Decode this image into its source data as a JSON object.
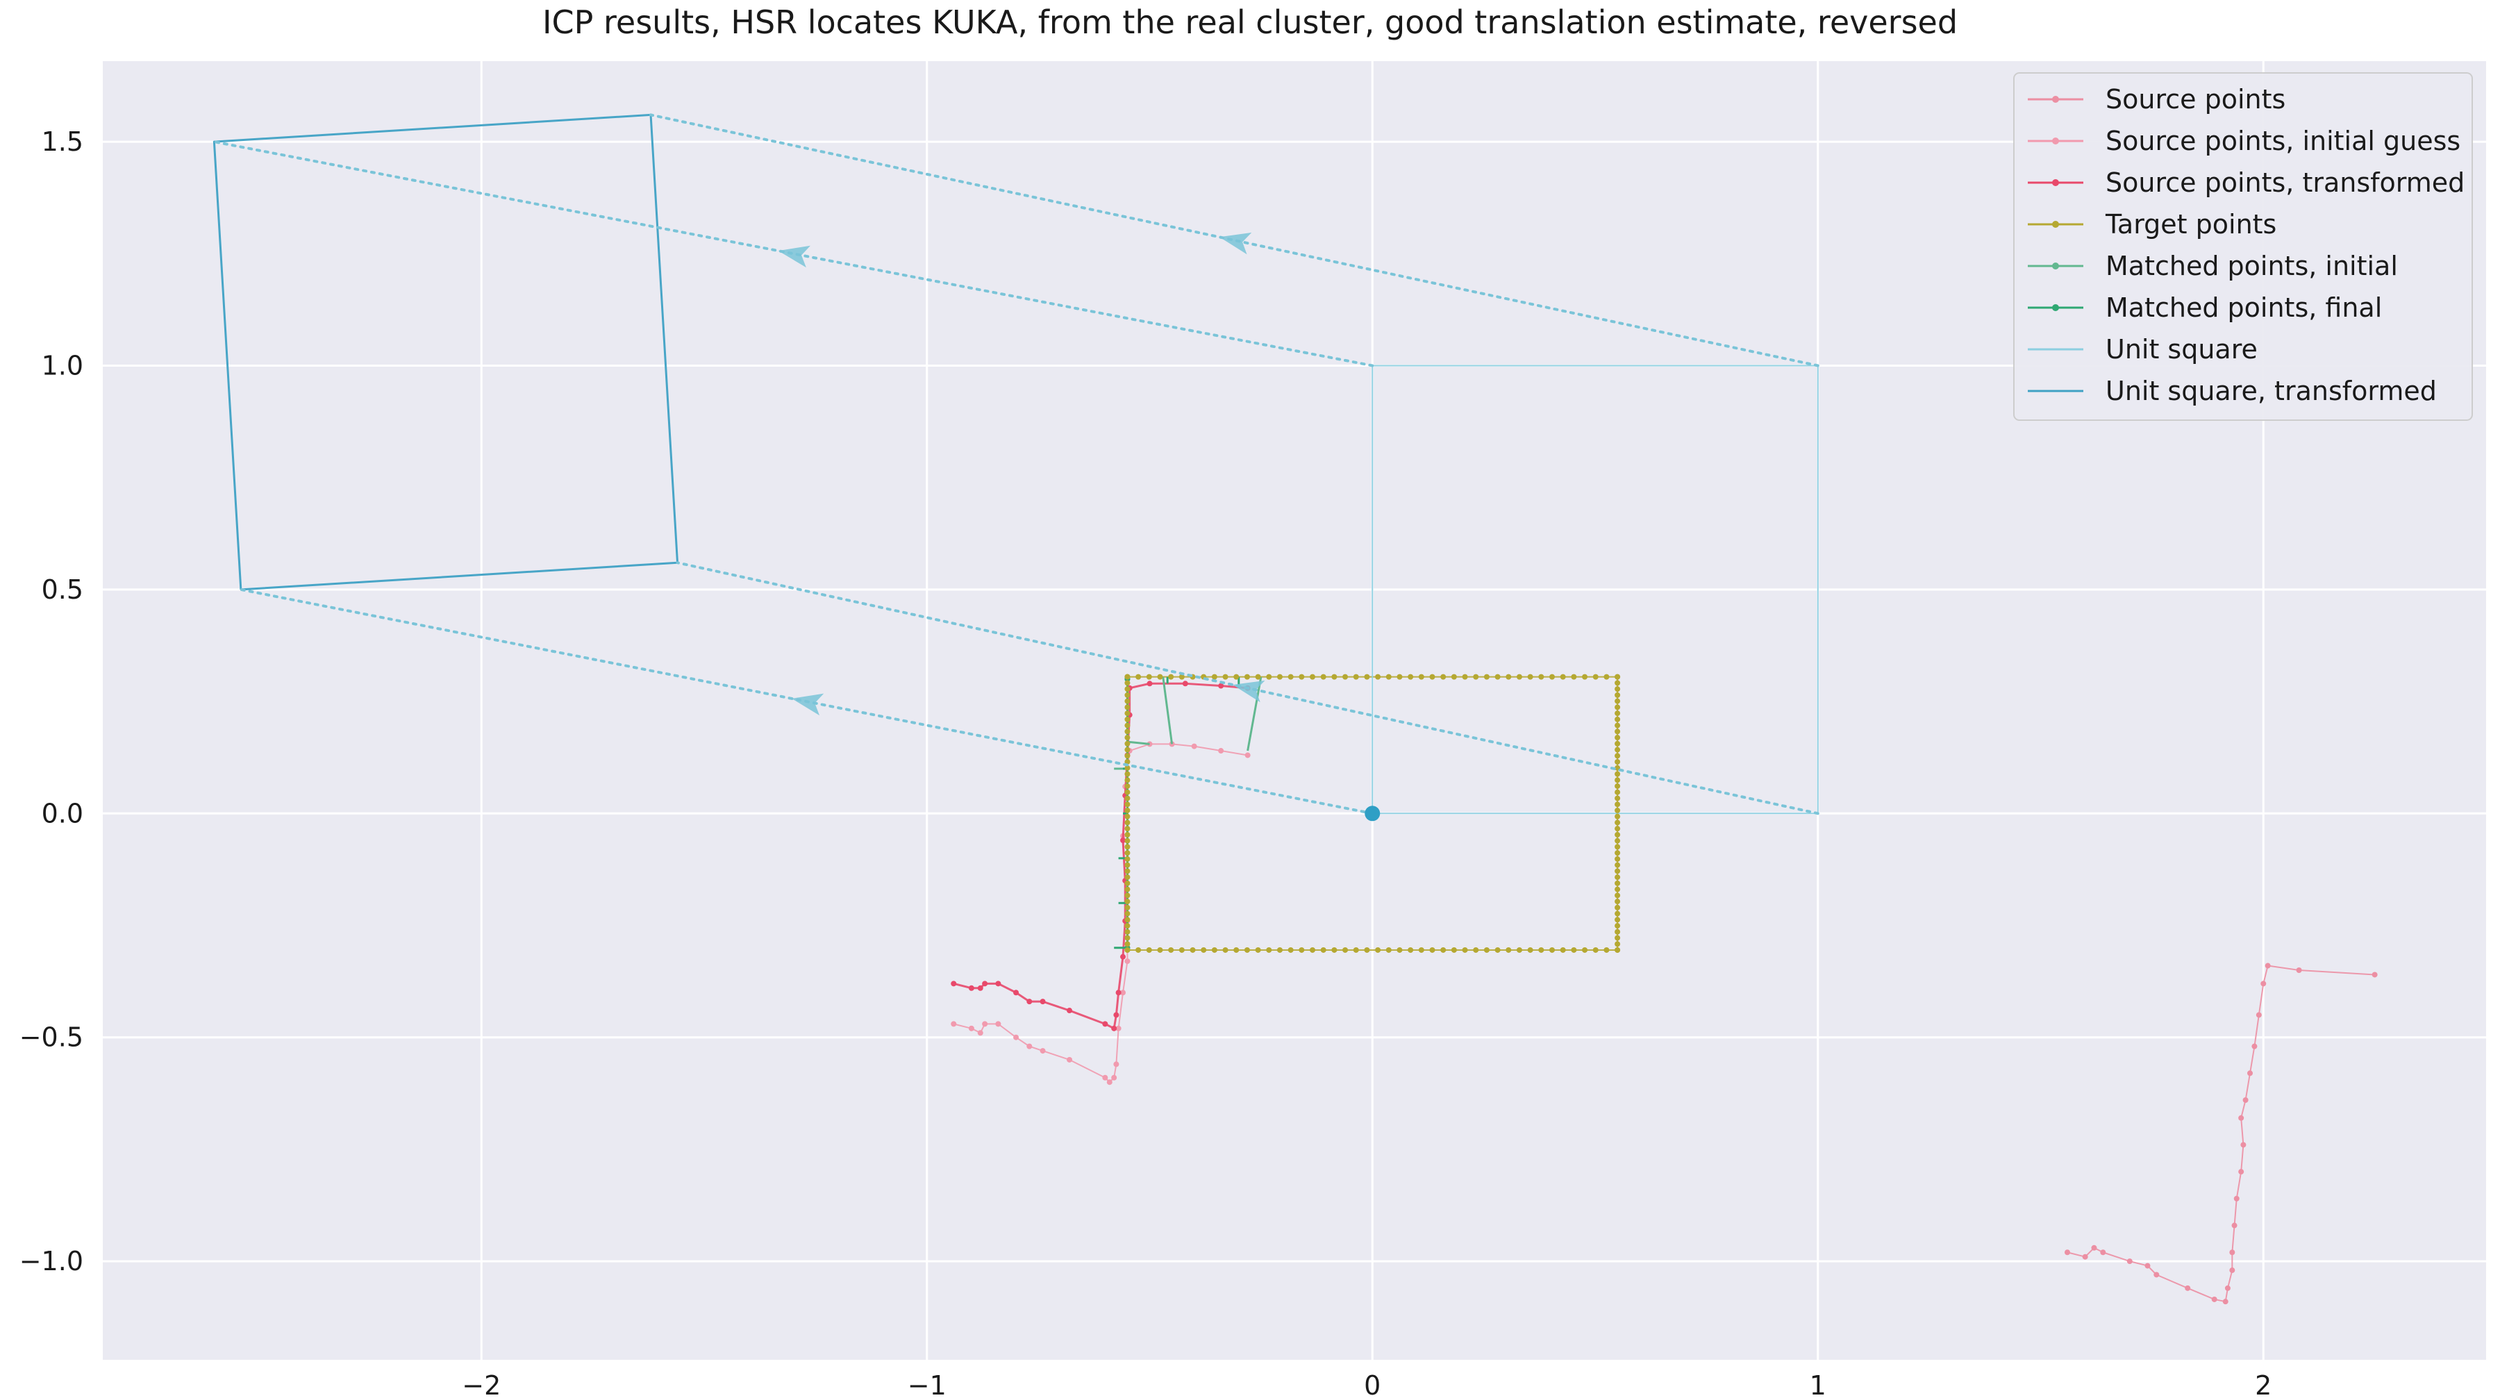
{
  "chart_data": {
    "type": "line",
    "title": "ICP results, HSR locates KUKA, from the real cluster, good translation estimate, reversed",
    "xlabel": "",
    "ylabel": "",
    "xlim": [
      -2.85,
      2.5
    ],
    "ylim": [
      -1.22,
      1.68
    ],
    "xticks": [
      -2,
      -1,
      0,
      1,
      2
    ],
    "yticks": [
      1.5,
      1.0,
      0.5,
      0.0,
      -0.5,
      -1.0
    ],
    "xtick_labels": [
      "−2",
      "−1",
      "0",
      "1",
      "2"
    ],
    "ytick_labels": [
      "1.5",
      "1.0",
      "0.5",
      "0.0",
      "−0.5",
      "−1.0"
    ],
    "grid": true,
    "legend_position": "top-right",
    "colors": {
      "background": "#eaeaf2",
      "grid": "#ffffff",
      "source": "#ec8fa3",
      "source_initial": "#f19aae",
      "source_transformed": "#e8496b",
      "target": "#b5a832",
      "matched_initial": "#62b890",
      "matched_final": "#2fa873",
      "unit_square": "#8ccfe0",
      "unit_square_transformed": "#3fa1c4",
      "arrow": "#7ac4d8"
    },
    "series": [
      {
        "name": "Source points",
        "color": "#ec8fa3",
        "points": [
          [
            2.25,
            -0.36
          ],
          [
            2.08,
            -0.35
          ],
          [
            2.01,
            -0.34
          ],
          [
            2.0,
            -0.38
          ],
          [
            1.99,
            -0.45
          ],
          [
            1.98,
            -0.52
          ],
          [
            1.97,
            -0.58
          ],
          [
            1.96,
            -0.64
          ],
          [
            1.95,
            -0.68
          ],
          [
            1.955,
            -0.74
          ],
          [
            1.95,
            -0.8
          ],
          [
            1.94,
            -0.86
          ],
          [
            1.935,
            -0.92
          ],
          [
            1.93,
            -0.98
          ],
          [
            1.93,
            -1.02
          ],
          [
            1.92,
            -1.06
          ],
          [
            1.915,
            -1.09
          ],
          [
            1.89,
            -1.085
          ],
          [
            1.83,
            -1.06
          ],
          [
            1.76,
            -1.03
          ],
          [
            1.74,
            -1.01
          ],
          [
            1.7,
            -1.0
          ],
          [
            1.64,
            -0.98
          ],
          [
            1.62,
            -0.97
          ],
          [
            1.6,
            -0.99
          ],
          [
            1.56,
            -0.98
          ]
        ]
      },
      {
        "name": "Source points, initial guess",
        "color": "#f19aae",
        "points": [
          [
            -0.94,
            -0.47
          ],
          [
            -0.9,
            -0.48
          ],
          [
            -0.88,
            -0.49
          ],
          [
            -0.87,
            -0.47
          ],
          [
            -0.84,
            -0.47
          ],
          [
            -0.8,
            -0.5
          ],
          [
            -0.77,
            -0.52
          ],
          [
            -0.74,
            -0.53
          ],
          [
            -0.68,
            -0.55
          ],
          [
            -0.6,
            -0.59
          ],
          [
            -0.59,
            -0.6
          ],
          [
            -0.58,
            -0.59
          ],
          [
            -0.575,
            -0.56
          ],
          [
            -0.57,
            -0.48
          ],
          [
            -0.56,
            -0.4
          ],
          [
            -0.55,
            -0.33
          ],
          [
            -0.55,
            -0.24
          ],
          [
            -0.555,
            -0.15
          ],
          [
            -0.56,
            -0.05
          ],
          [
            -0.555,
            0.06
          ],
          [
            -0.545,
            0.14
          ],
          [
            -0.5,
            0.155
          ],
          [
            -0.45,
            0.155
          ],
          [
            -0.4,
            0.15
          ],
          [
            -0.34,
            0.14
          ],
          [
            -0.28,
            0.13
          ]
        ]
      },
      {
        "name": "Source points, transformed",
        "color": "#e8496b",
        "points": [
          [
            -0.94,
            -0.38
          ],
          [
            -0.9,
            -0.39
          ],
          [
            -0.88,
            -0.39
          ],
          [
            -0.87,
            -0.38
          ],
          [
            -0.84,
            -0.38
          ],
          [
            -0.8,
            -0.4
          ],
          [
            -0.77,
            -0.42
          ],
          [
            -0.74,
            -0.42
          ],
          [
            -0.68,
            -0.44
          ],
          [
            -0.6,
            -0.47
          ],
          [
            -0.58,
            -0.48
          ],
          [
            -0.575,
            -0.45
          ],
          [
            -0.57,
            -0.4
          ],
          [
            -0.56,
            -0.32
          ],
          [
            -0.555,
            -0.24
          ],
          [
            -0.555,
            -0.15
          ],
          [
            -0.56,
            -0.06
          ],
          [
            -0.555,
            0.04
          ],
          [
            -0.55,
            0.13
          ],
          [
            -0.545,
            0.22
          ],
          [
            -0.545,
            0.28
          ],
          [
            -0.5,
            0.29
          ],
          [
            -0.42,
            0.29
          ],
          [
            -0.34,
            0.285
          ],
          [
            -0.28,
            0.28
          ]
        ]
      },
      {
        "name": "Target points",
        "color": "#b5a832",
        "points": [
          [
            -0.55,
            0.305
          ],
          [
            0.55,
            0.305
          ],
          [
            0.55,
            -0.305
          ],
          [
            -0.55,
            -0.305
          ],
          [
            -0.55,
            0.305
          ]
        ]
      },
      {
        "name": "Matched points, initial",
        "color": "#62b890",
        "points": [
          [
            -0.55,
            0.3
          ],
          [
            -0.55,
            -0.3
          ]
        ],
        "segments": [
          [
            [
              -0.28,
              0.14
            ],
            [
              -0.25,
              0.305
            ]
          ],
          [
            [
              -0.45,
              0.155
            ],
            [
              -0.47,
              0.305
            ]
          ],
          [
            [
              -0.5,
              0.155
            ],
            [
              -0.55,
              0.16
            ]
          ],
          [
            [
              -0.55,
              0.1
            ],
            [
              -0.58,
              0.1
            ]
          ]
        ]
      },
      {
        "name": "Matched points, final",
        "color": "#2fa873",
        "points": [
          [
            -0.55,
            0.3
          ],
          [
            -0.55,
            -0.3
          ]
        ],
        "segments": [
          [
            [
              -0.57,
              -0.1
            ],
            [
              -0.55,
              -0.1
            ]
          ],
          [
            [
              -0.56,
              0.0
            ],
            [
              -0.55,
              0.0
            ]
          ],
          [
            [
              -0.56,
              0.1
            ],
            [
              -0.55,
              0.1
            ]
          ],
          [
            [
              -0.57,
              -0.2
            ],
            [
              -0.55,
              -0.2
            ]
          ],
          [
            [
              -0.58,
              -0.3
            ],
            [
              -0.55,
              -0.3
            ]
          ],
          [
            [
              -0.3,
              0.28
            ],
            [
              -0.3,
              0.305
            ]
          ],
          [
            [
              -0.46,
              0.29
            ],
            [
              -0.46,
              0.305
            ]
          ]
        ]
      },
      {
        "name": "Unit square",
        "color": "#8ccfe0",
        "points": [
          [
            0,
            0
          ],
          [
            1,
            0
          ],
          [
            1,
            1
          ],
          [
            0,
            1
          ],
          [
            0,
            0
          ]
        ]
      },
      {
        "name": "Unit square, transformed",
        "color": "#3fa1c4",
        "points": [
          [
            -2.54,
            0.5
          ],
          [
            -1.56,
            0.56
          ],
          [
            -1.62,
            1.56
          ],
          [
            -2.6,
            1.5
          ],
          [
            -2.54,
            0.5
          ]
        ]
      }
    ],
    "correspondence_arrows": [
      {
        "from": [
          0,
          0
        ],
        "to": [
          -2.54,
          0.5
        ]
      },
      {
        "from": [
          1,
          0
        ],
        "to": [
          -1.56,
          0.56
        ]
      },
      {
        "from": [
          1,
          1
        ],
        "to": [
          -1.62,
          1.56
        ]
      },
      {
        "from": [
          0,
          1
        ],
        "to": [
          -2.6,
          1.5
        ]
      }
    ],
    "origin_marker": [
      0,
      0
    ]
  }
}
